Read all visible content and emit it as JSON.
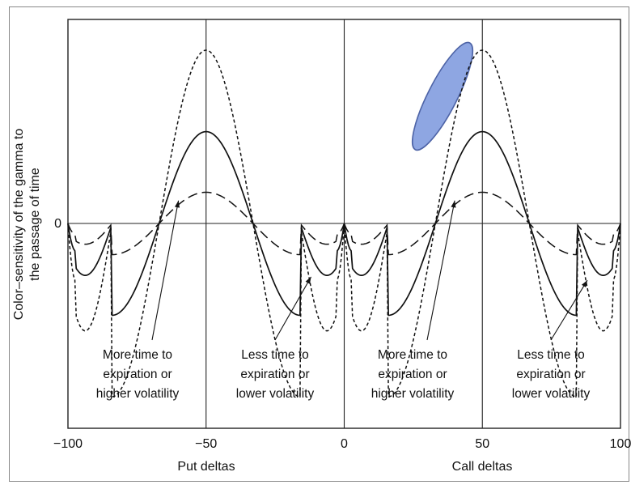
{
  "chart_data": {
    "type": "line",
    "xlabel_left": "Put deltas",
    "xlabel_right": "Call deltas",
    "ylabel": "Color–sensitivity of the gamma to the passage of time",
    "ylabel_lines": [
      "Color–sensitivity of the gamma to",
      "the passage of time"
    ],
    "xlim": [
      -100,
      100
    ],
    "ylim": [
      -1.35,
      1.2
    ],
    "x_ticks": [
      {
        "value": -100,
        "label": "−100"
      },
      {
        "value": -50,
        "label": "−50"
      },
      {
        "value": 0,
        "label": "0"
      },
      {
        "value": 50,
        "label": "50"
      },
      {
        "value": 100,
        "label": "100"
      }
    ],
    "y_ticks": [
      {
        "value": 0,
        "label": "0"
      }
    ],
    "vertical_lines": [
      -50,
      0,
      50
    ],
    "grid": false,
    "series": [
      {
        "style": "dotted",
        "amplitude": 1.0,
        "trough": -0.62,
        "zero_cross": [
          -84,
          -16,
          16,
          84
        ],
        "peak": [
          [
            -50,
            1.0
          ],
          [
            50,
            1.0
          ]
        ],
        "troughs": [
          [
            -97,
            -0.62
          ],
          [
            -4,
            -0.55
          ],
          [
            4,
            -0.62
          ],
          [
            97,
            -0.55
          ]
        ]
      },
      {
        "style": "solid",
        "amplitude": 0.53,
        "trough": -0.3,
        "zero_cross": [
          -84,
          -16,
          16,
          84
        ],
        "peak": [
          [
            -50,
            0.53
          ],
          [
            50,
            0.53
          ]
        ],
        "troughs": [
          [
            -97,
            -0.3
          ],
          [
            -3,
            -0.22
          ],
          [
            3,
            -0.3
          ],
          [
            97,
            -0.22
          ]
        ]
      },
      {
        "style": "dashed",
        "amplitude": 0.18,
        "trough": -0.12,
        "zero_cross": [
          -84,
          -16,
          16,
          84
        ],
        "peak": [
          [
            -50,
            0.18
          ],
          [
            50,
            0.18
          ]
        ],
        "troughs": [
          [
            -95,
            -0.12
          ],
          [
            -5,
            -0.1
          ],
          [
            5,
            -0.12
          ],
          [
            95,
            -0.1
          ]
        ]
      }
    ],
    "annotations": [
      {
        "lines": [
          "More time to",
          "expiration or",
          "higher volatility"
        ],
        "points_to": [
          -60,
          0.16
        ]
      },
      {
        "lines": [
          "Less time to",
          "expiration or",
          "lower volatility"
        ],
        "points_to": [
          -12,
          -0.28
        ]
      },
      {
        "lines": [
          "More time to",
          "expiration or",
          "higher volatility"
        ],
        "points_to": [
          40,
          0.16
        ]
      },
      {
        "lines": [
          "Less time to",
          "expiration or",
          "lower volatility"
        ],
        "points_to": [
          88,
          -0.3
        ]
      }
    ],
    "highlight": {
      "shape": "ellipse",
      "color": "#8ea6e2",
      "stroke": "#4d63a6",
      "center": [
        35,
        0.72
      ],
      "label": ""
    }
  }
}
